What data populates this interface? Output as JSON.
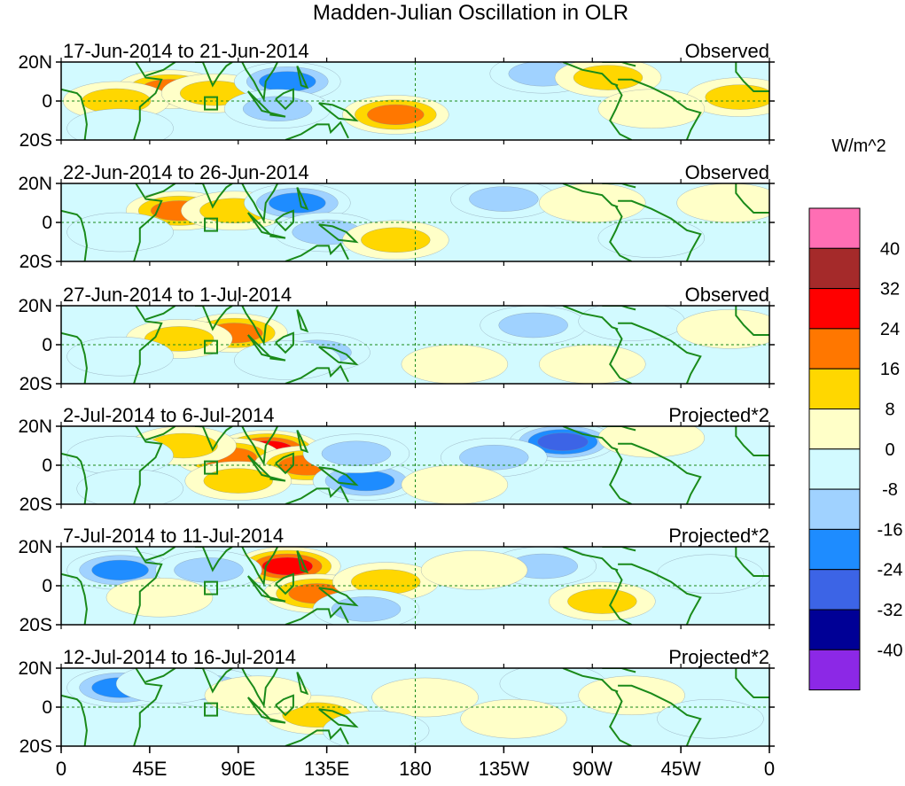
{
  "chart_data": {
    "type": "heatmap",
    "title": "Madden-Julian Oscillation in OLR",
    "units": "W/m^2",
    "x_range": [
      0,
      360
    ],
    "x_ticks": [
      {
        "lon": 0,
        "label": "0"
      },
      {
        "lon": 45,
        "label": "45E"
      },
      {
        "lon": 90,
        "label": "90E"
      },
      {
        "lon": 135,
        "label": "135E"
      },
      {
        "lon": 180,
        "label": "180"
      },
      {
        "lon": 225,
        "label": "135W"
      },
      {
        "lon": 270,
        "label": "90W"
      },
      {
        "lon": 315,
        "label": "45W"
      },
      {
        "lon": 360,
        "label": "0"
      }
    ],
    "y_range": [
      -20,
      20
    ],
    "y_ticks": [
      {
        "lat": 20,
        "label": "20N"
      },
      {
        "lat": 0,
        "label": "0"
      },
      {
        "lat": -20,
        "label": "20S"
      }
    ],
    "colorbar": {
      "levels": [
        40,
        32,
        24,
        16,
        8,
        0,
        -8,
        -16,
        -24,
        -32,
        -40
      ],
      "colors": [
        "#ff6eb4",
        "#a52a2a",
        "#ff0000",
        "#ff7700",
        "#ffd700",
        "#ffffc8",
        "#d2faff",
        "#a0d2ff",
        "#1e8cff",
        "#3c64e6",
        "#000096",
        "#8c28e6"
      ]
    },
    "panels": [
      {
        "date_range": "17-Jun-2014 to 21-Jun-2014",
        "type": "Observed",
        "anomalies": [
          {
            "lon": 55,
            "lat": 6,
            "value": 20
          },
          {
            "lon": 28,
            "lat": 0,
            "value": 9
          },
          {
            "lon": 78,
            "lat": 4,
            "value": 9
          },
          {
            "lon": 115,
            "lat": 10,
            "value": -20
          },
          {
            "lon": 110,
            "lat": -4,
            "value": -16
          },
          {
            "lon": 170,
            "lat": -7,
            "value": 18
          },
          {
            "lon": 245,
            "lat": 14,
            "value": -10
          },
          {
            "lon": 278,
            "lat": 12,
            "value": 16
          },
          {
            "lon": 345,
            "lat": 2,
            "value": 10
          },
          {
            "lon": 300,
            "lat": -4,
            "value": 4
          },
          {
            "lon": 30,
            "lat": -14,
            "value": -5
          }
        ]
      },
      {
        "date_range": "22-Jun-2014 to 26-Jun-2014",
        "type": "Observed",
        "anomalies": [
          {
            "lon": 60,
            "lat": 6,
            "value": 19
          },
          {
            "lon": 88,
            "lat": 6,
            "value": 12
          },
          {
            "lon": 120,
            "lat": 10,
            "value": -22
          },
          {
            "lon": 135,
            "lat": -5,
            "value": -12
          },
          {
            "lon": 170,
            "lat": -9,
            "value": 10
          },
          {
            "lon": 225,
            "lat": 12,
            "value": -10
          },
          {
            "lon": 270,
            "lat": 10,
            "value": 6
          },
          {
            "lon": 30,
            "lat": -5,
            "value": -6
          },
          {
            "lon": 340,
            "lat": 10,
            "value": 5
          },
          {
            "lon": 300,
            "lat": -8,
            "value": -5
          }
        ]
      },
      {
        "date_range": "27-Jun-2014 to 1-Jul-2014",
        "type": "Observed",
        "anomalies": [
          {
            "lon": 88,
            "lat": 6,
            "value": 20
          },
          {
            "lon": 60,
            "lat": 3,
            "value": 9
          },
          {
            "lon": 130,
            "lat": -4,
            "value": -10
          },
          {
            "lon": 115,
            "lat": -8,
            "value": -8
          },
          {
            "lon": 240,
            "lat": 10,
            "value": -10
          },
          {
            "lon": 290,
            "lat": 12,
            "value": -6
          },
          {
            "lon": 30,
            "lat": -6,
            "value": -5
          },
          {
            "lon": 200,
            "lat": -10,
            "value": 4
          },
          {
            "lon": 340,
            "lat": 8,
            "value": 4
          },
          {
            "lon": 270,
            "lat": -10,
            "value": 4
          }
        ]
      },
      {
        "date_range": "2-Jul-2014 to 6-Jul-2014",
        "type": "Projected*2",
        "anomalies": [
          {
            "lon": 105,
            "lat": 8,
            "value": 32
          },
          {
            "lon": 85,
            "lat": 4,
            "value": 20
          },
          {
            "lon": 125,
            "lat": 0,
            "value": 22
          },
          {
            "lon": 62,
            "lat": 10,
            "value": 12
          },
          {
            "lon": 90,
            "lat": -8,
            "value": 12
          },
          {
            "lon": 155,
            "lat": -8,
            "value": -24
          },
          {
            "lon": 150,
            "lat": 6,
            "value": -12
          },
          {
            "lon": 255,
            "lat": 12,
            "value": -28
          },
          {
            "lon": 220,
            "lat": 4,
            "value": -10
          },
          {
            "lon": 300,
            "lat": 14,
            "value": 8
          },
          {
            "lon": 30,
            "lat": 5,
            "value": -8
          },
          {
            "lon": 35,
            "lat": -12,
            "value": -6
          },
          {
            "lon": 200,
            "lat": -10,
            "value": 6
          }
        ]
      },
      {
        "date_range": "7-Jul-2014 to 11-Jul-2014",
        "type": "Projected*2",
        "anomalies": [
          {
            "lon": 115,
            "lat": 10,
            "value": 26
          },
          {
            "lon": 130,
            "lat": -4,
            "value": 20
          },
          {
            "lon": 165,
            "lat": 2,
            "value": 10
          },
          {
            "lon": 30,
            "lat": 8,
            "value": -18
          },
          {
            "lon": 75,
            "lat": 8,
            "value": -16
          },
          {
            "lon": 155,
            "lat": -12,
            "value": -16
          },
          {
            "lon": 275,
            "lat": -8,
            "value": 16
          },
          {
            "lon": 245,
            "lat": 10,
            "value": -10
          },
          {
            "lon": 210,
            "lat": 8,
            "value": 6
          },
          {
            "lon": 330,
            "lat": 6,
            "value": -8
          },
          {
            "lon": 50,
            "lat": -6,
            "value": 6
          }
        ]
      },
      {
        "date_range": "12-Jul-2014 to 16-Jul-2014",
        "type": "Projected*2",
        "anomalies": [
          {
            "lon": 130,
            "lat": -4,
            "value": 16
          },
          {
            "lon": 30,
            "lat": 10,
            "value": -18
          },
          {
            "lon": 75,
            "lat": 10,
            "value": -16
          },
          {
            "lon": 55,
            "lat": 12,
            "value": -8
          },
          {
            "lon": 100,
            "lat": 6,
            "value": 6
          },
          {
            "lon": 185,
            "lat": 5,
            "value": 6
          },
          {
            "lon": 250,
            "lat": 12,
            "value": -8
          },
          {
            "lon": 290,
            "lat": 6,
            "value": 5
          },
          {
            "lon": 330,
            "lat": -6,
            "value": -6
          },
          {
            "lon": 160,
            "lat": -12,
            "value": -6
          },
          {
            "lon": 230,
            "lat": -6,
            "value": 4
          }
        ]
      }
    ]
  }
}
